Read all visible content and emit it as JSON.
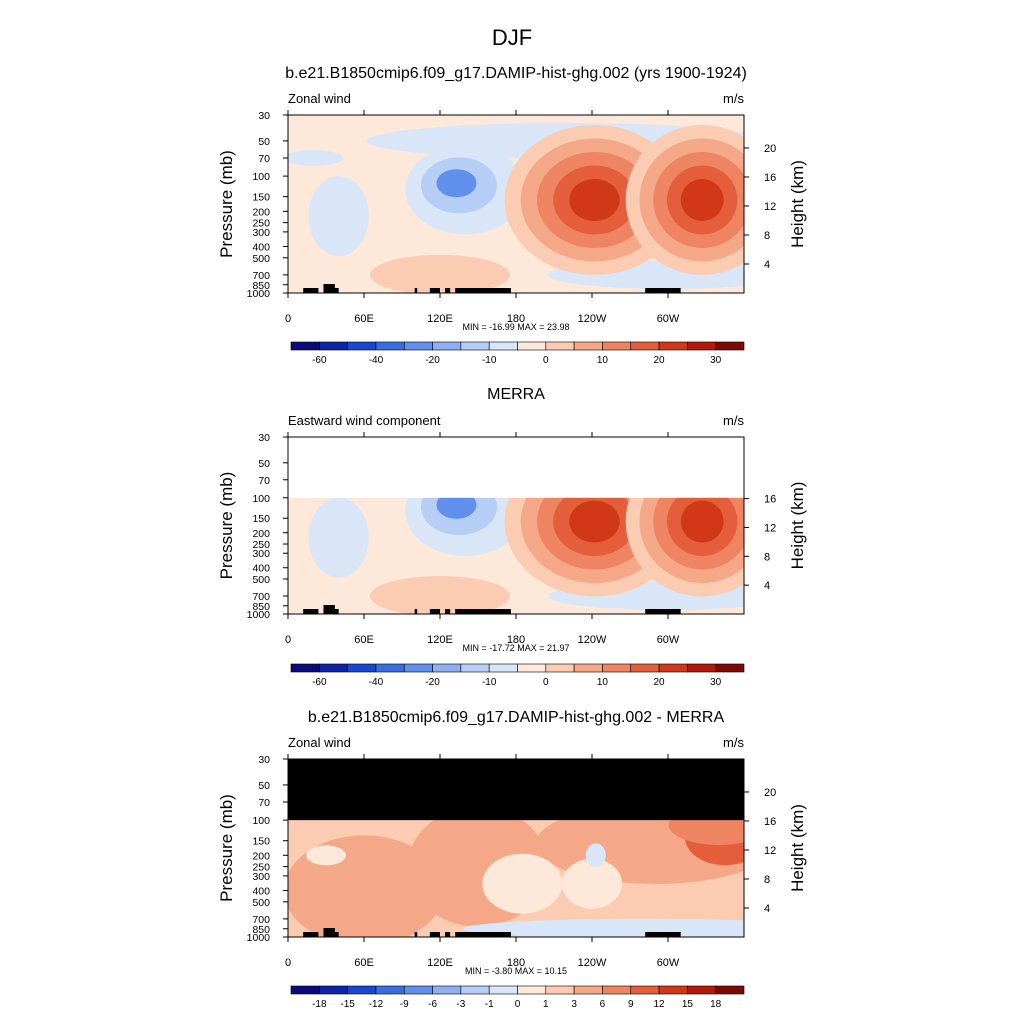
{
  "figure_title": "DJF",
  "chart_data": [
    {
      "type": "heatmap",
      "title": "b.e21.B1850cmip6.f09_g17.DAMIP-hist-ghg.002 (yrs 1900-1924)",
      "left_label": "Zonal wind",
      "right_label": "m/s",
      "ylabel": "Pressure (mb)",
      "ylabel_right": "Height (km)",
      "x_ticks": [
        "0",
        "60E",
        "120E",
        "180",
        "120W",
        "60W"
      ],
      "y_ticks": [
        "30",
        "50",
        "70",
        "100",
        "150",
        "200",
        "250",
        "300",
        "400",
        "500",
        "700",
        "850",
        "1000"
      ],
      "y_ticks_right": [
        "20",
        "16",
        "12",
        "8",
        "4"
      ],
      "y_range_mb": [
        1000,
        30
      ],
      "x_range_deg": [
        0,
        360
      ],
      "stats": "MIN = -16.99  MAX =  23.98",
      "min": -16.99,
      "max": 23.98,
      "colorbar_labels": [
        "-60",
        "-40",
        "-20",
        "-10",
        "0",
        "10",
        "20",
        "30"
      ],
      "features": [
        {
          "kind": "max",
          "lon": 242,
          "p": 160,
          "value": 24
        },
        {
          "kind": "max",
          "lon": 327,
          "p": 160,
          "value": 20
        },
        {
          "kind": "min",
          "lon": 133,
          "p": 110,
          "value": -17
        }
      ]
    },
    {
      "type": "heatmap",
      "title": "MERRA",
      "left_label": "Eastward wind component",
      "right_label": "m/s",
      "ylabel": "Pressure (mb)",
      "ylabel_right": "Height (km)",
      "x_ticks": [
        "0",
        "60E",
        "120E",
        "180",
        "120W",
        "60W"
      ],
      "y_ticks": [
        "30",
        "50",
        "70",
        "100",
        "150",
        "200",
        "250",
        "300",
        "400",
        "500",
        "700",
        "850",
        "1000"
      ],
      "y_ticks_right": [
        "16",
        "12",
        "8",
        "4"
      ],
      "y_range_mb": [
        1000,
        30
      ],
      "x_range_deg": [
        0,
        360
      ],
      "stats": "MIN = -17.72  MAX =  21.97",
      "min": -17.72,
      "max": 21.97,
      "colorbar_labels": [
        "-60",
        "-40",
        "-20",
        "-10",
        "0",
        "10",
        "20",
        "30"
      ],
      "no_data_above_mb": 100
    },
    {
      "type": "heatmap",
      "title": "b.e21.B1850cmip6.f09_g17.DAMIP-hist-ghg.002 - MERRA",
      "left_label": "Zonal wind",
      "right_label": "m/s",
      "ylabel": "Pressure (mb)",
      "ylabel_right": "Height (km)",
      "x_ticks": [
        "0",
        "60E",
        "120E",
        "180",
        "120W",
        "60W"
      ],
      "y_ticks": [
        "30",
        "50",
        "70",
        "100",
        "150",
        "200",
        "250",
        "300",
        "400",
        "500",
        "700",
        "850",
        "1000"
      ],
      "y_ticks_right": [
        "20",
        "16",
        "12",
        "8",
        "4"
      ],
      "y_range_mb": [
        1000,
        30
      ],
      "x_range_deg": [
        0,
        360
      ],
      "stats": "MIN = -3.80  MAX =  10.15",
      "min": -3.8,
      "max": 10.15,
      "colorbar_labels": [
        "-18",
        "-15",
        "-12",
        "-9",
        "-6",
        "-3",
        "-1",
        "0",
        "1",
        "3",
        "6",
        "9",
        "12",
        "15",
        "18"
      ],
      "masked_above_mb": 100
    }
  ],
  "colors": {
    "colorbar": [
      "#0a0a7a",
      "#0c24a6",
      "#1848d0",
      "#3a6ee0",
      "#6090ec",
      "#8eb0f2",
      "#b6cef6",
      "#d8e6f8",
      "#fde8da",
      "#fbcbb2",
      "#f5a888",
      "#ee8462",
      "#e45e3c",
      "#d03818",
      "#b11a0a",
      "#7c0a04"
    ],
    "neg_weak": "#d8e6f8",
    "neg_mid": "#b6cef6",
    "neg_strong": "#8eb0f2",
    "neg_core": "#6090ec",
    "pos_weak": "#fde8da",
    "pos_1": "#fbcbb2",
    "pos_2": "#f5a888",
    "pos_3": "#ee8462",
    "pos_4": "#e45e3c",
    "pos_5": "#d03818"
  }
}
